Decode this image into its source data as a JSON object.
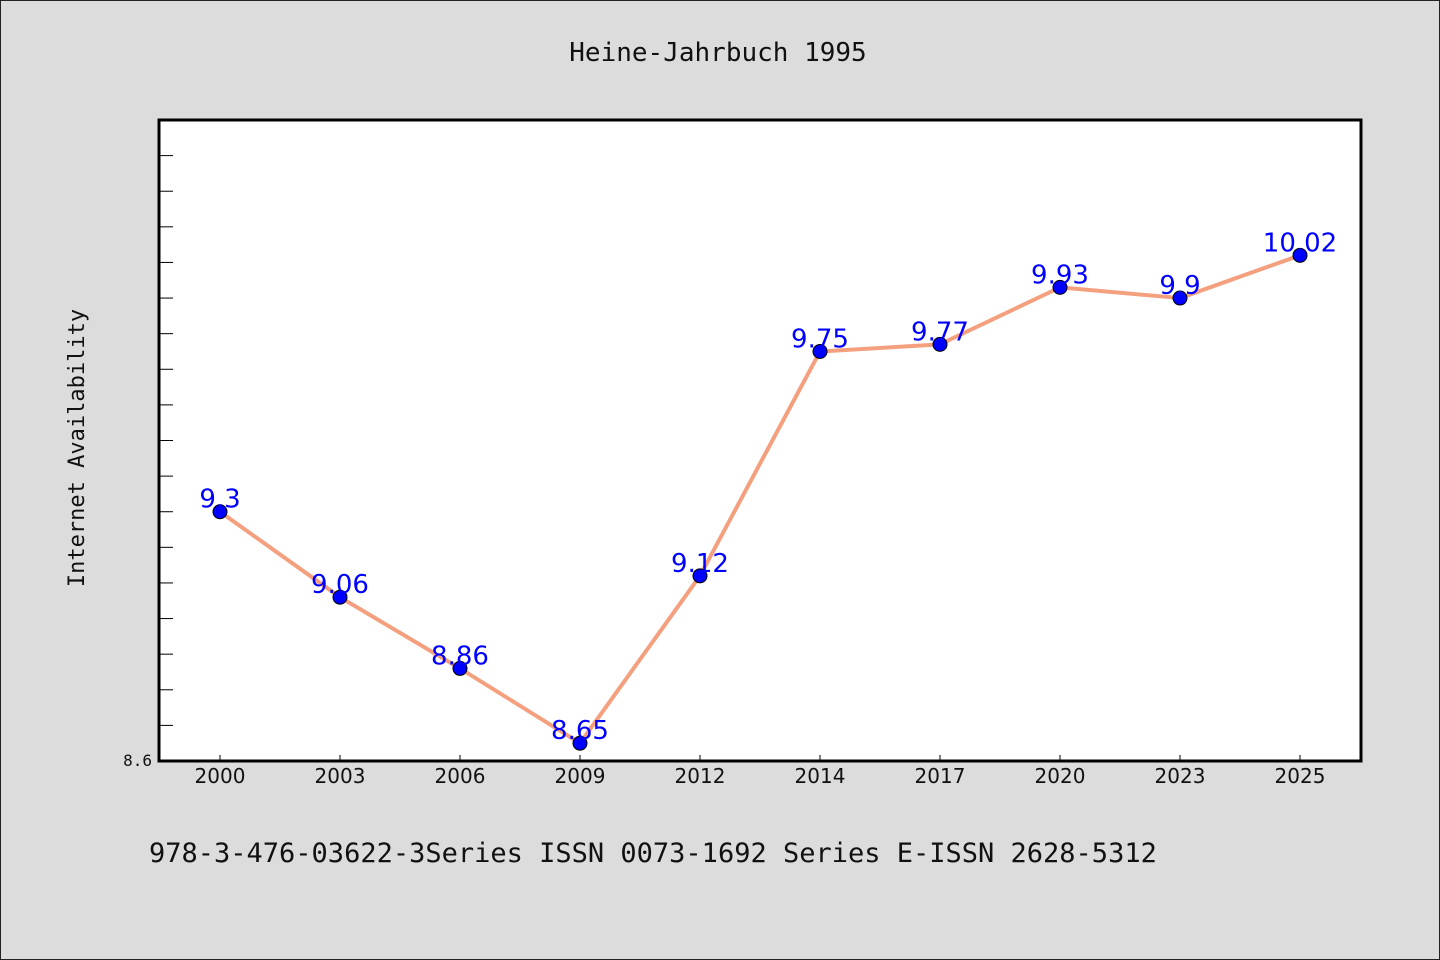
{
  "chart_data": {
    "type": "line",
    "title": "Heine-Jahrbuch 1995",
    "xlabel": "",
    "ylabel": "Internet Availability",
    "categories": [
      "2000",
      "2003",
      "2006",
      "2009",
      "2012",
      "2014",
      "2017",
      "2020",
      "2023",
      "2025"
    ],
    "values": [
      9.3,
      9.06,
      8.86,
      8.65,
      9.12,
      9.75,
      9.77,
      9.93,
      9.9,
      10.02
    ],
    "data_labels": [
      "9.3",
      "9.06",
      "8.86",
      "8.65",
      "9.12",
      "9.75",
      "9.77",
      "9.93",
      "9.9",
      "10.02"
    ],
    "ylim": [
      8.6,
      10.4
    ],
    "ytick_labels": [
      "8.6"
    ],
    "grid": false,
    "line_color": "#f4a07f",
    "marker_color": "#0000ff",
    "label_color": "#0000ff",
    "footer": "978-3-476-03622-3Series ISSN 0073-1692 Series E-ISSN 2628-5312"
  }
}
